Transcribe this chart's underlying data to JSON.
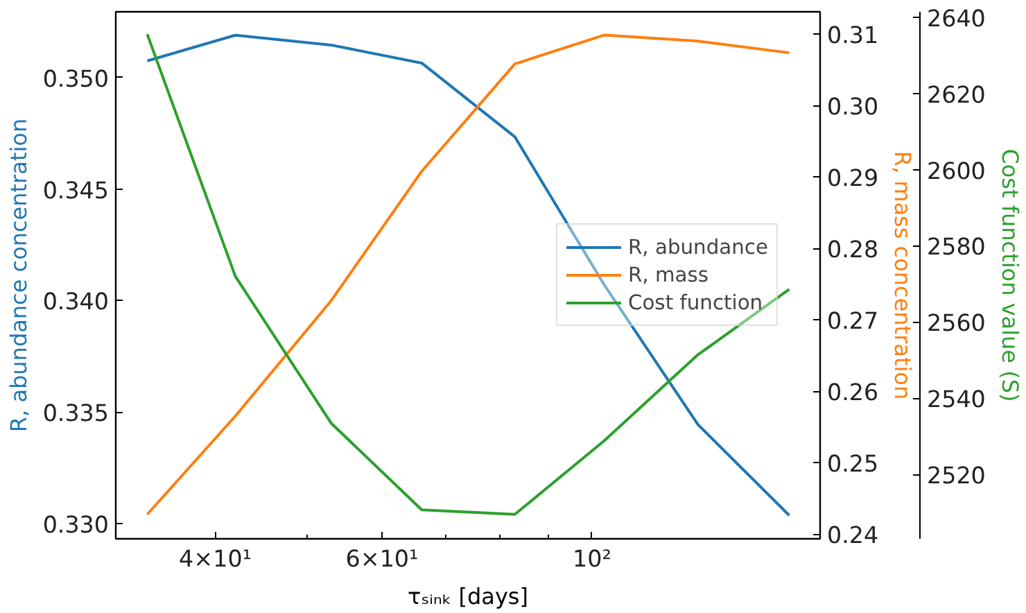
{
  "chart_data": {
    "type": "line",
    "x": [
      33.9,
      42.0,
      53.0,
      66.1,
      82.9,
      103.0,
      129.4,
      161.6
    ],
    "series": [
      {
        "name": "R, abundance",
        "color": "#1f77b4",
        "values": [
          0.35075,
          0.3519,
          0.35146,
          0.35065,
          0.34734,
          0.34071,
          0.33444,
          0.33036
        ]
      },
      {
        "name": "R, mass",
        "color": "#ff7f0e",
        "axis": "y2",
        "values": [
          0.24275,
          0.25652,
          0.27264,
          0.2908,
          0.30583,
          0.30987,
          0.30902,
          0.30739
        ]
      },
      {
        "name": "Cost function",
        "color": "#2ca02c",
        "axis": "y3",
        "values": [
          2635.5,
          2572.0,
          2533.5,
          2510.7,
          2509.5,
          2528.8,
          2551.4,
          2568.6
        ]
      }
    ],
    "xlabel": "τₛᵢₙₖ [days]",
    "ylabel": "R, abundance concentration",
    "y2label": "R, mass concentration",
    "y3label": "Cost function value (S)",
    "log": "x",
    "xlim": [
      31.4,
      174.2
    ],
    "xticks": [
      {
        "value": 40,
        "label": "4×10¹"
      },
      {
        "value": 50,
        "label": null
      },
      {
        "value": 60,
        "label": "6×10¹"
      },
      {
        "value": 70,
        "label": null
      },
      {
        "value": 80,
        "label": null
      },
      {
        "value": 90,
        "label": null
      },
      {
        "value": 100,
        "label": "10²"
      }
    ],
    "ylim": [
      0.32931,
      0.35295
    ],
    "yticks": [
      {
        "value": 0.33,
        "label": "0.330"
      },
      {
        "value": 0.335,
        "label": "0.335"
      },
      {
        "value": 0.34,
        "label": "0.340"
      },
      {
        "value": 0.345,
        "label": "0.345"
      },
      {
        "value": 0.35,
        "label": "0.350"
      }
    ],
    "y2lim": [
      0.23933,
      0.31313
    ],
    "y2ticks": [
      {
        "value": 0.24,
        "label": "0.24"
      },
      {
        "value": 0.25,
        "label": "0.25"
      },
      {
        "value": 0.26,
        "label": "0.26"
      },
      {
        "value": 0.27,
        "label": "0.27"
      },
      {
        "value": 0.28,
        "label": "0.28"
      },
      {
        "value": 0.29,
        "label": "0.29"
      },
      {
        "value": 0.3,
        "label": "0.30"
      },
      {
        "value": 0.31,
        "label": "0.31"
      }
    ],
    "y3lim": [
      2503.1,
      2641.4
    ],
    "y3ticks": [
      2520,
      2540,
      2560,
      2580,
      2600,
      2620,
      2640
    ],
    "grid": false,
    "legend": "center right",
    "marker": "none",
    "line_style": "solid"
  }
}
